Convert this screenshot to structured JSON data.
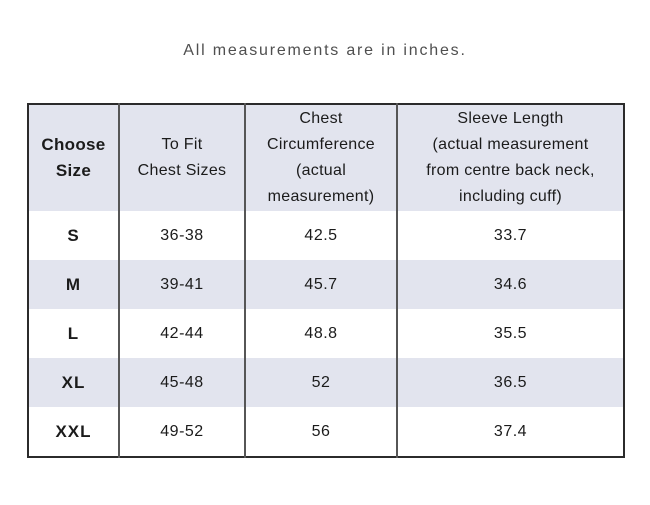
{
  "title": "All measurements are in inches.",
  "colors": {
    "background": "#ffffff",
    "header_fill": "#e2e4ee",
    "stripe_fill": "#e2e4ee",
    "outer_border": "#2b2b2b",
    "inner_divider": "#565656",
    "text": "#1b1b1b",
    "title_text": "#4f4f4f"
  },
  "table": {
    "header_display": [
      "Choose\nSize",
      "To Fit\nChest Sizes",
      "Chest\nCircumference\n(actual\nmeasurement)",
      "Sleeve Length\n(actual measurement\nfrom centre back neck,\nincluding cuff)"
    ]
  },
  "chart_data": {
    "type": "table",
    "title": "All measurements are in inches.",
    "columns": [
      "Choose Size",
      "To Fit Chest Sizes",
      "Chest Circumference (actual measurement)",
      "Sleeve Length (actual measurement from centre back neck, including cuff)"
    ],
    "rows": [
      [
        "S",
        "36-38",
        42.5,
        33.7
      ],
      [
        "M",
        "39-41",
        45.7,
        34.6
      ],
      [
        "L",
        "42-44",
        48.8,
        35.5
      ],
      [
        "XL",
        "45-48",
        52,
        36.5
      ],
      [
        "XXL",
        "49-52",
        56,
        37.4
      ]
    ],
    "layout": {
      "stripe_pattern": "even body rows shaded",
      "gridlines": "vertical dividers only, outer frame, no horizontal row lines",
      "units": "inches"
    }
  }
}
